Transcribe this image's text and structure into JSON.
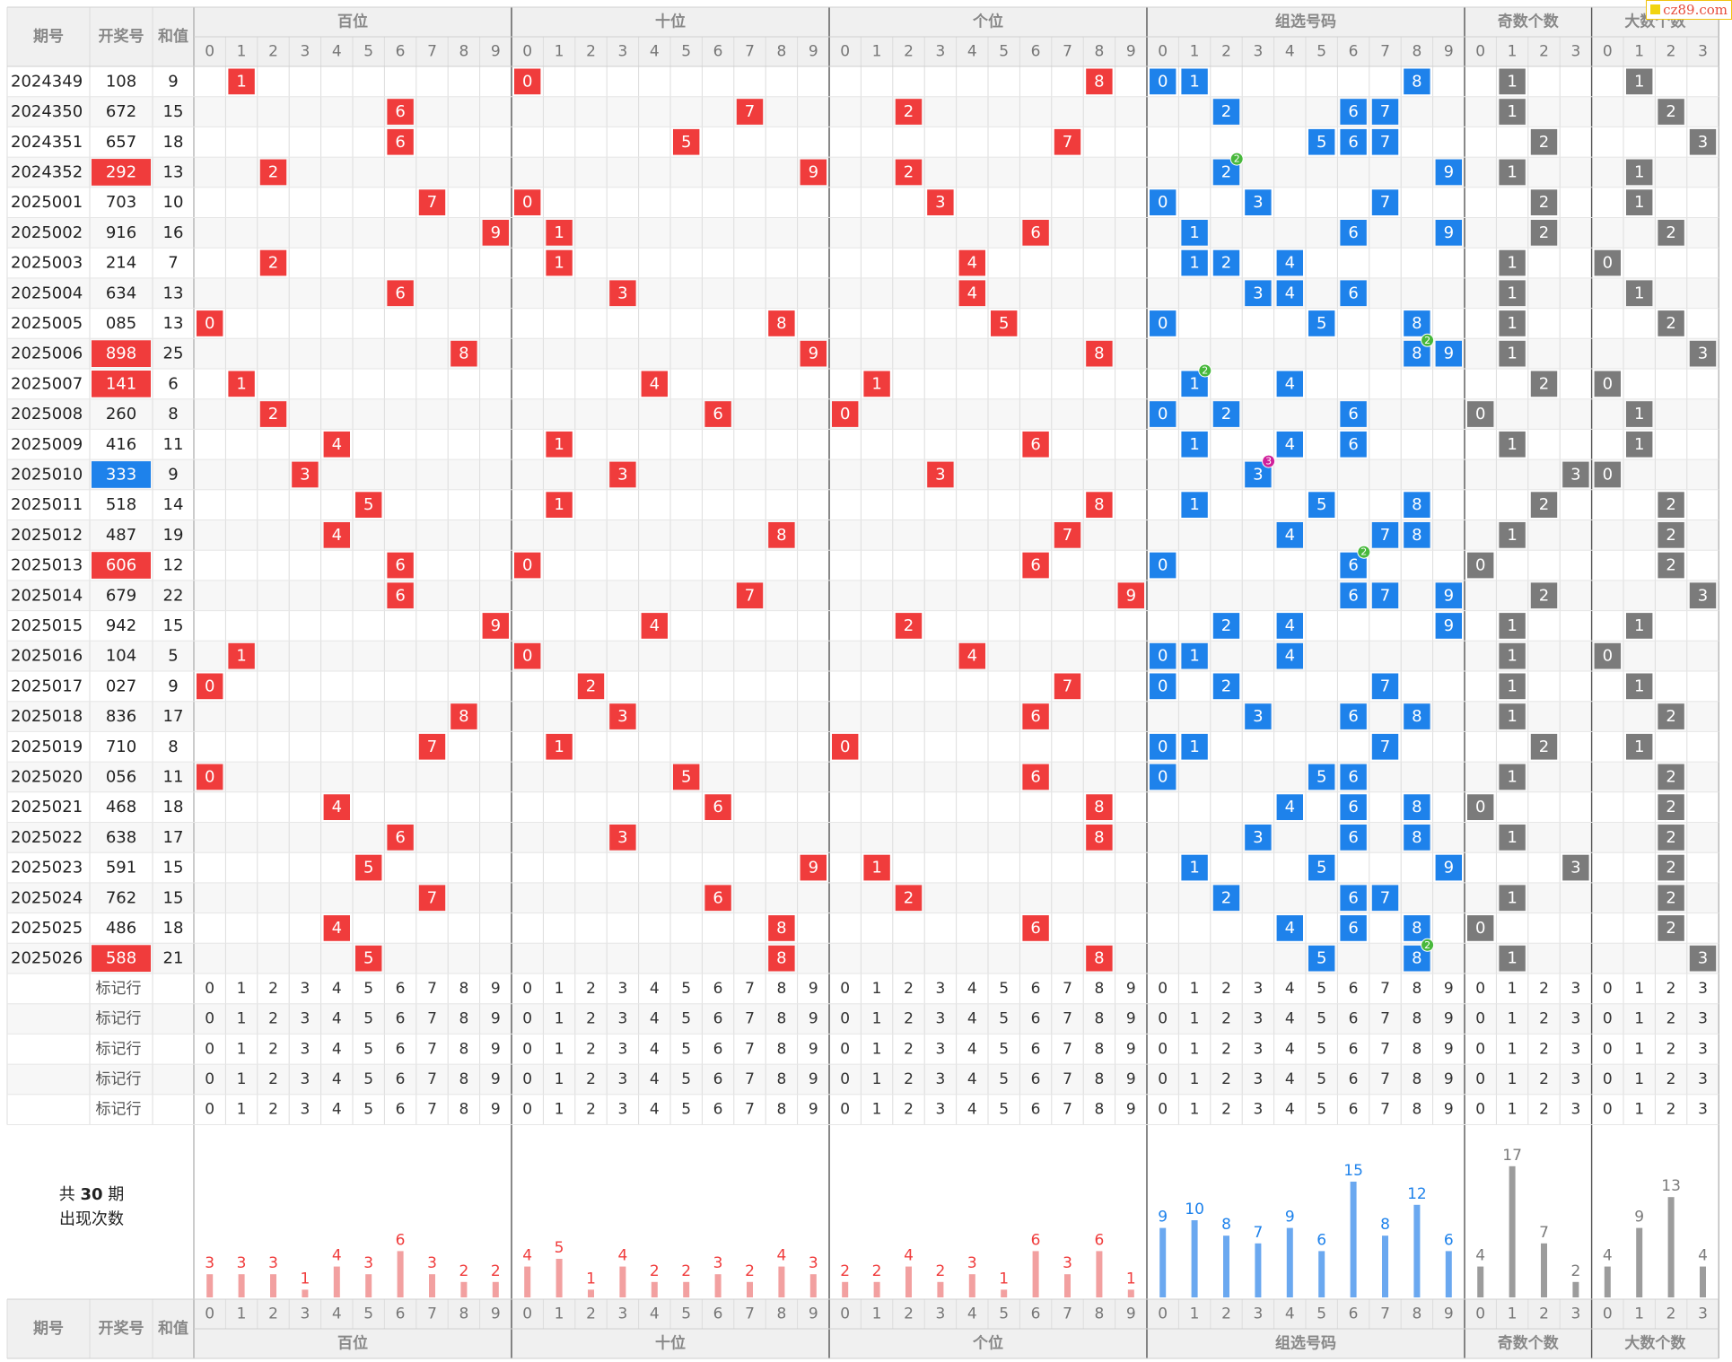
{
  "logo": "cz89.com",
  "header": {
    "period": "期号",
    "draw": "开奖号",
    "sum": "和值",
    "groups": [
      "百位",
      "十位",
      "个位",
      "组选号码",
      "奇数个数",
      "大数个数"
    ],
    "footer_groups": [
      "百位",
      "十位",
      "个位",
      "组选号码",
      "奇数个数",
      "大数个数"
    ]
  },
  "marker_label": "标记行",
  "stats_label": {
    "prefix": "共",
    "count": "30",
    "suffix": "期",
    "line2": "出现次数"
  },
  "colors": {
    "position": "#f03c3c",
    "combo": "#1e82eb",
    "count": "#7b7b7b",
    "repeat2": "#48b83c",
    "repeat3": "#d0209b",
    "bar_position": "#f2a0a0",
    "bar_combo": "#6aa8f0",
    "bar_count": "#9c9c9c"
  },
  "chart_data": {
    "type": "table",
    "rows": [
      {
        "period": "2024349",
        "draw": "108",
        "sum": "9",
        "highlight": ""
      },
      {
        "period": "2024350",
        "draw": "672",
        "sum": "15",
        "highlight": ""
      },
      {
        "period": "2024351",
        "draw": "657",
        "sum": "18",
        "highlight": ""
      },
      {
        "period": "2024352",
        "draw": "292",
        "sum": "13",
        "highlight": "pair"
      },
      {
        "period": "2025001",
        "draw": "703",
        "sum": "10",
        "highlight": ""
      },
      {
        "period": "2025002",
        "draw": "916",
        "sum": "16",
        "highlight": ""
      },
      {
        "period": "2025003",
        "draw": "214",
        "sum": "7",
        "highlight": ""
      },
      {
        "period": "2025004",
        "draw": "634",
        "sum": "13",
        "highlight": ""
      },
      {
        "period": "2025005",
        "draw": "085",
        "sum": "13",
        "highlight": ""
      },
      {
        "period": "2025006",
        "draw": "898",
        "sum": "25",
        "highlight": "pair"
      },
      {
        "period": "2025007",
        "draw": "141",
        "sum": "6",
        "highlight": "pair"
      },
      {
        "period": "2025008",
        "draw": "260",
        "sum": "8",
        "highlight": ""
      },
      {
        "period": "2025009",
        "draw": "416",
        "sum": "11",
        "highlight": ""
      },
      {
        "period": "2025010",
        "draw": "333",
        "sum": "9",
        "highlight": "triple"
      },
      {
        "period": "2025011",
        "draw": "518",
        "sum": "14",
        "highlight": ""
      },
      {
        "period": "2025012",
        "draw": "487",
        "sum": "19",
        "highlight": ""
      },
      {
        "period": "2025013",
        "draw": "606",
        "sum": "12",
        "highlight": "pair"
      },
      {
        "period": "2025014",
        "draw": "679",
        "sum": "22",
        "highlight": ""
      },
      {
        "period": "2025015",
        "draw": "942",
        "sum": "15",
        "highlight": ""
      },
      {
        "period": "2025016",
        "draw": "104",
        "sum": "5",
        "highlight": ""
      },
      {
        "period": "2025017",
        "draw": "027",
        "sum": "9",
        "highlight": ""
      },
      {
        "period": "2025018",
        "draw": "836",
        "sum": "17",
        "highlight": ""
      },
      {
        "period": "2025019",
        "draw": "710",
        "sum": "8",
        "highlight": ""
      },
      {
        "period": "2025020",
        "draw": "056",
        "sum": "11",
        "highlight": ""
      },
      {
        "period": "2025021",
        "draw": "468",
        "sum": "18",
        "highlight": ""
      },
      {
        "period": "2025022",
        "draw": "638",
        "sum": "17",
        "highlight": ""
      },
      {
        "period": "2025023",
        "draw": "591",
        "sum": "15",
        "highlight": ""
      },
      {
        "period": "2025024",
        "draw": "762",
        "sum": "15",
        "highlight": ""
      },
      {
        "period": "2025025",
        "draw": "486",
        "sum": "18",
        "highlight": ""
      },
      {
        "period": "2025026",
        "draw": "588",
        "sum": "21",
        "highlight": "pair"
      }
    ],
    "odd_counts": [
      1,
      1,
      2,
      1,
      2,
      2,
      1,
      1,
      1,
      1,
      2,
      0,
      1,
      3,
      2,
      1,
      0,
      2,
      1,
      1,
      1,
      1,
      2,
      1,
      0,
      1,
      3,
      1,
      0,
      1
    ],
    "big_counts": [
      1,
      2,
      3,
      1,
      1,
      2,
      0,
      1,
      2,
      3,
      0,
      1,
      1,
      0,
      2,
      2,
      2,
      3,
      1,
      0,
      1,
      2,
      1,
      2,
      2,
      2,
      2,
      2,
      2,
      3
    ],
    "frequency": {
      "hundreds": [
        3,
        3,
        3,
        1,
        4,
        3,
        6,
        3,
        2,
        2
      ],
      "tens": [
        4,
        5,
        1,
        4,
        2,
        2,
        3,
        2,
        4,
        3
      ],
      "units": [
        2,
        2,
        4,
        2,
        3,
        1,
        6,
        3,
        6,
        1
      ],
      "combo": [
        9,
        10,
        8,
        7,
        9,
        6,
        15,
        8,
        12,
        6
      ],
      "odd_count": [
        4,
        17,
        7,
        2
      ],
      "big_count": [
        4,
        9,
        13,
        4
      ]
    }
  }
}
